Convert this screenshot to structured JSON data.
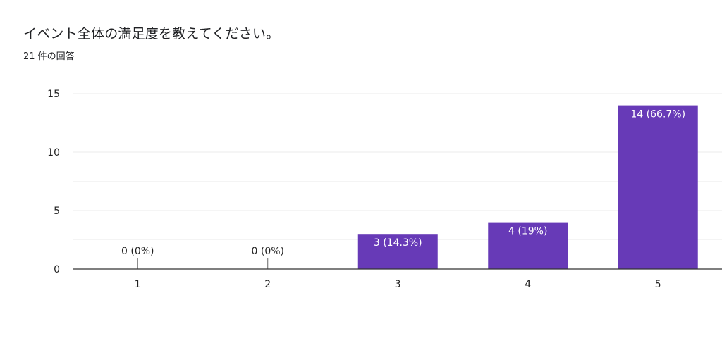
{
  "header": {
    "title": "イベント全体の満足度を教えてください。",
    "response_count": "21 件の回答"
  },
  "colors": {
    "bar": "#673ab7",
    "gridline": "#ebebeb",
    "axis": "#333333",
    "text": "#202124"
  },
  "chart_data": {
    "type": "bar",
    "title": "",
    "xlabel": "",
    "ylabel": "",
    "categories": [
      "1",
      "2",
      "3",
      "4",
      "5"
    ],
    "values": [
      0,
      0,
      3,
      4,
      14
    ],
    "data_labels": [
      "0 (0%)",
      "0 (0%)",
      "3 (14.3%)",
      "4 (19%)",
      "14 (66.7%)"
    ],
    "yticks": [
      0,
      5,
      10,
      15
    ],
    "ylim": [
      0,
      15
    ],
    "grid": true,
    "minor_grid": true,
    "legend": "none"
  }
}
